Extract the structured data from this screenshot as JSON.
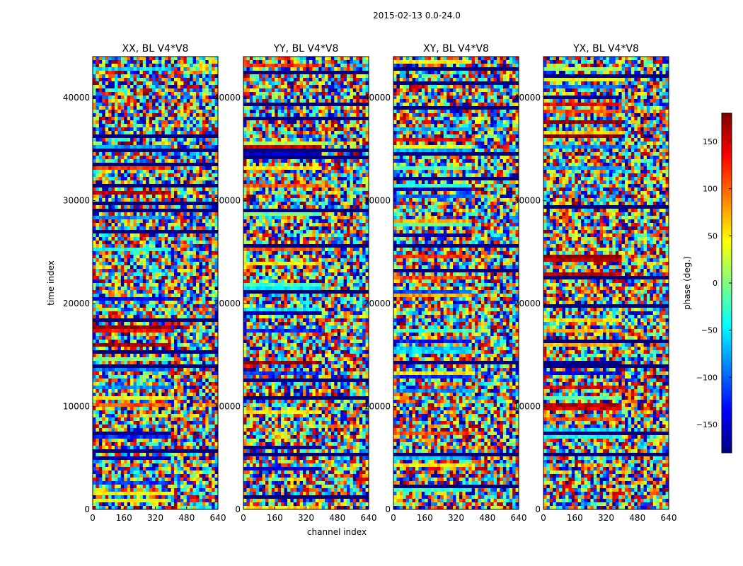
{
  "chart_data": {
    "type": "heatmap",
    "title": "2015-02-13 0.0-24.0",
    "xlabel": "channel index",
    "ylabel": "time index",
    "xlim": [
      0,
      640
    ],
    "ylim": [
      0,
      44000
    ],
    "x_ticks": [
      "0",
      "160",
      "320",
      "480",
      "640"
    ],
    "y_ticks": [
      "0",
      "10000",
      "20000",
      "30000",
      "40000"
    ],
    "panels": [
      {
        "title": "XX, BL V4*V8"
      },
      {
        "title": "YY, BL V4*V8"
      },
      {
        "title": "XY, BL V4*V8"
      },
      {
        "title": "YX, BL V4*V8"
      }
    ],
    "colorbar": {
      "label": "phase (deg.)",
      "range": [
        -180,
        180
      ],
      "ticks": [
        "150",
        "100",
        "50",
        "0",
        "−50",
        "−100",
        "−150"
      ],
      "tick_values": [
        150,
        100,
        50,
        0,
        -50,
        -100,
        -150
      ],
      "colormap": "jet",
      "colors": [
        "#00007f",
        "#0000ff",
        "#007fff",
        "#00ffff",
        "#7fff7f",
        "#ffff00",
        "#ff7f00",
        "#ff0000",
        "#7f0000"
      ]
    }
  }
}
